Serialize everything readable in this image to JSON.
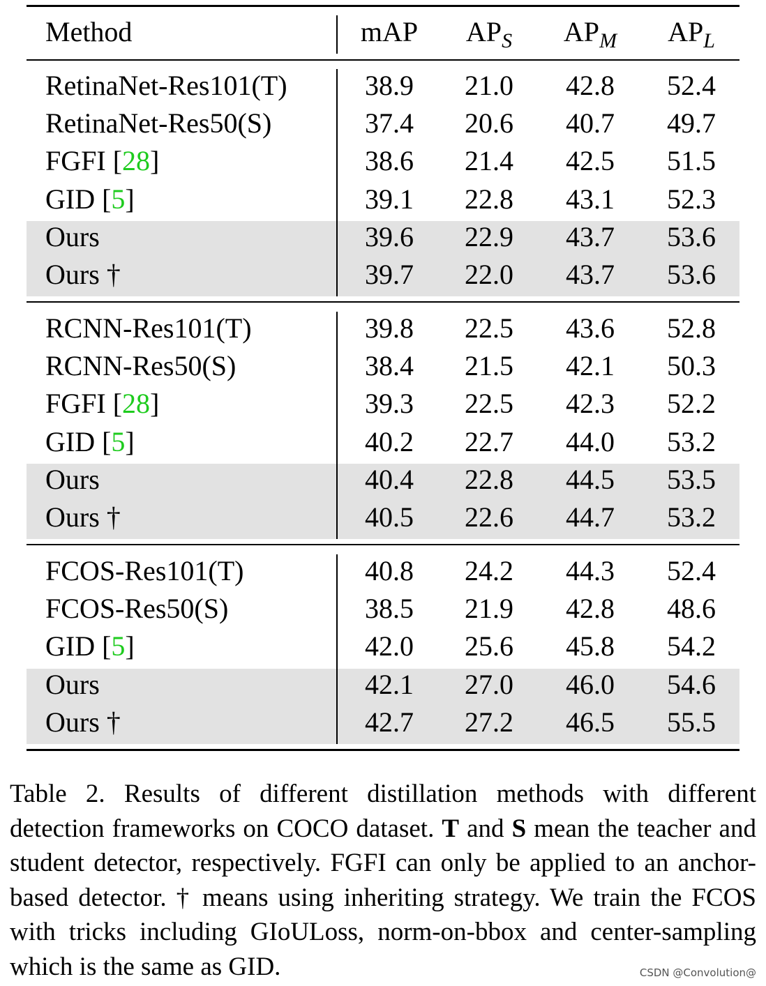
{
  "table": {
    "headers": {
      "method": "Method",
      "map": "mAP",
      "aps": "AP",
      "aps_sub": "S",
      "apm": "AP",
      "apm_sub": "M",
      "apl": "AP",
      "apl_sub": "L"
    },
    "groups": [
      {
        "rows": [
          {
            "method": "RetinaNet-Res101(T)",
            "cite": "",
            "suffix": "",
            "values": [
              "38.9",
              "21.0",
              "42.8",
              "52.4"
            ],
            "highlighted": false
          },
          {
            "method": "RetinaNet-Res50(S)",
            "cite": "",
            "suffix": "",
            "values": [
              "37.4",
              "20.6",
              "40.7",
              "49.7"
            ],
            "highlighted": false
          },
          {
            "method": "FGFI [",
            "cite": "28",
            "suffix": "]",
            "values": [
              "38.6",
              "21.4",
              "42.5",
              "51.5"
            ],
            "highlighted": false
          },
          {
            "method": "GID [",
            "cite": "5",
            "suffix": "]",
            "values": [
              "39.1",
              "22.8",
              "43.1",
              "52.3"
            ],
            "highlighted": false
          },
          {
            "method": "Ours",
            "cite": "",
            "suffix": "",
            "values": [
              "39.6",
              "22.9",
              "43.7",
              "53.6"
            ],
            "highlighted": true
          },
          {
            "method": "Ours †",
            "cite": "",
            "suffix": "",
            "values": [
              "39.7",
              "22.0",
              "43.7",
              "53.6"
            ],
            "highlighted": true
          }
        ]
      },
      {
        "rows": [
          {
            "method": "RCNN-Res101(T)",
            "cite": "",
            "suffix": "",
            "values": [
              "39.8",
              "22.5",
              "43.6",
              "52.8"
            ],
            "highlighted": false
          },
          {
            "method": "RCNN-Res50(S)",
            "cite": "",
            "suffix": "",
            "values": [
              "38.4",
              "21.5",
              "42.1",
              "50.3"
            ],
            "highlighted": false
          },
          {
            "method": "FGFI [",
            "cite": "28",
            "suffix": "]",
            "values": [
              "39.3",
              "22.5",
              "42.3",
              "52.2"
            ],
            "highlighted": false
          },
          {
            "method": "GID [",
            "cite": "5",
            "suffix": "]",
            "values": [
              "40.2",
              "22.7",
              "44.0",
              "53.2"
            ],
            "highlighted": false
          },
          {
            "method": "Ours",
            "cite": "",
            "suffix": "",
            "values": [
              "40.4",
              "22.8",
              "44.5",
              "53.5"
            ],
            "highlighted": true
          },
          {
            "method": "Ours †",
            "cite": "",
            "suffix": "",
            "values": [
              "40.5",
              "22.6",
              "44.7",
              "53.2"
            ],
            "highlighted": true
          }
        ]
      },
      {
        "rows": [
          {
            "method": "FCOS-Res101(T)",
            "cite": "",
            "suffix": "",
            "values": [
              "40.8",
              "24.2",
              "44.3",
              "52.4"
            ],
            "highlighted": false
          },
          {
            "method": "FCOS-Res50(S)",
            "cite": "",
            "suffix": "",
            "values": [
              "38.5",
              "21.9",
              "42.8",
              "48.6"
            ],
            "highlighted": false
          },
          {
            "method": "GID [",
            "cite": "5",
            "suffix": "]",
            "values": [
              "42.0",
              "25.6",
              "45.8",
              "54.2"
            ],
            "highlighted": false
          },
          {
            "method": "Ours",
            "cite": "",
            "suffix": "",
            "values": [
              "42.1",
              "27.0",
              "46.0",
              "54.6"
            ],
            "highlighted": true
          },
          {
            "method": "Ours †",
            "cite": "",
            "suffix": "",
            "values": [
              "42.7",
              "27.2",
              "46.5",
              "55.5"
            ],
            "highlighted": true
          }
        ]
      }
    ]
  },
  "caption": {
    "part1": "Table 2.  Results of different distillation methods with different detection frameworks on COCO dataset. ",
    "bold_t": "T",
    "part2": " and ",
    "bold_s": "S",
    "part3": " mean the teacher and student detector, respectively.  FGFI can only be applied to an anchor-based detector. † means using inheriting strategy. We train the FCOS with tricks including GIoULoss, norm-on-bbox and center-sampling which is the same as GID."
  },
  "watermark": "CSDN @Convolution@",
  "colors": {
    "citation": "#1ecb1e",
    "highlight_row": "#e2e2e2"
  }
}
